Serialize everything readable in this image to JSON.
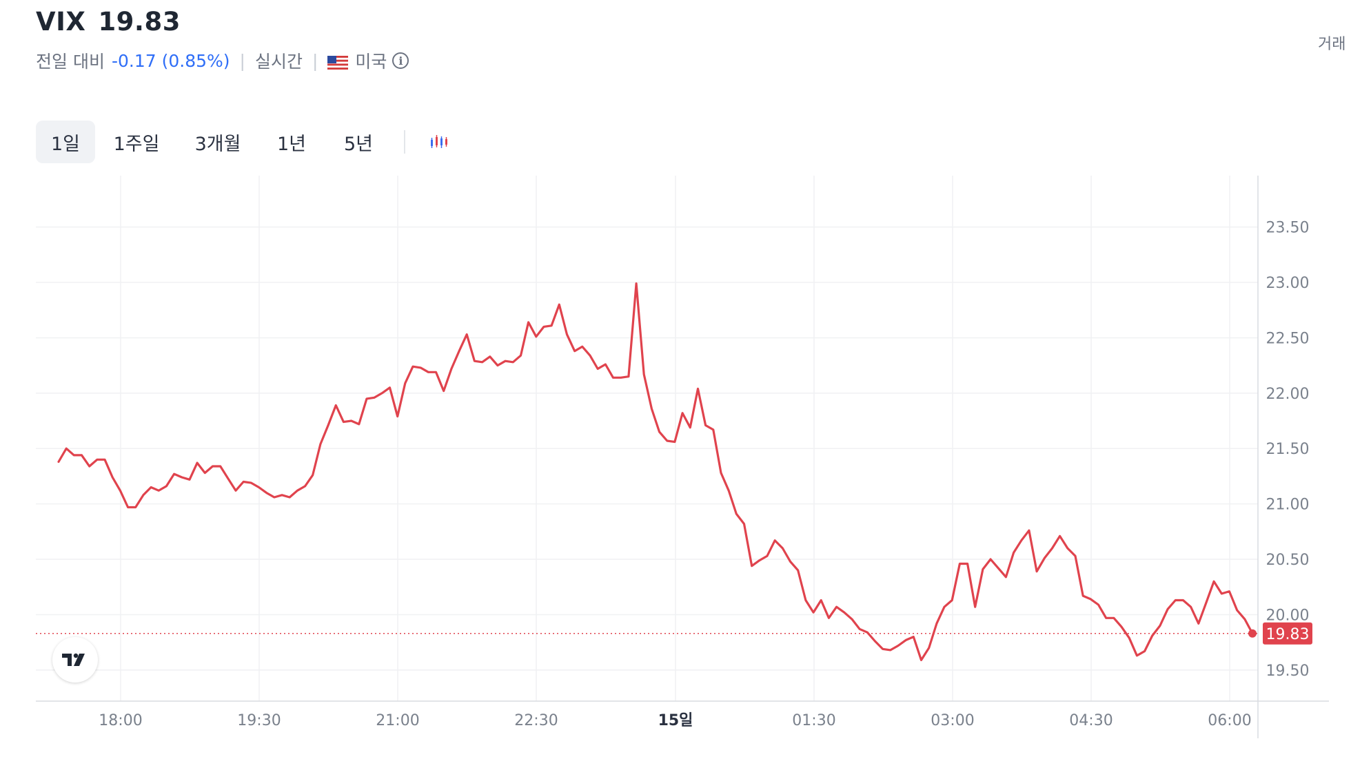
{
  "header": {
    "symbol": "VIX",
    "price": "19.83",
    "change_label": "전일 대비",
    "change": "-0.17 (0.85%)",
    "realtime": "실시간",
    "market": "미국",
    "right_text": "거래",
    "flag_icon": "us-flag-icon",
    "info_icon": "info-icon",
    "info_glyph": "i"
  },
  "tabs": [
    {
      "label": "1일",
      "active": true
    },
    {
      "label": "1주일",
      "active": false
    },
    {
      "label": "3개월",
      "active": false
    },
    {
      "label": "1년",
      "active": false
    },
    {
      "label": "5년",
      "active": false
    }
  ],
  "chart_type_icon": "candlestick-chart-icon",
  "colors": {
    "line": "#e0434d",
    "last_price_bg": "#e0434d",
    "change_text": "#2f6ef7"
  },
  "chart_data": {
    "type": "line",
    "x_axis_labels": [
      "18:00",
      "19:30",
      "21:00",
      "22:30",
      "15일",
      "01:30",
      "03:00",
      "04:30",
      "06:00"
    ],
    "y_tick_labels": [
      "23.50",
      "23.00",
      "22.50",
      "22.00",
      "21.50",
      "21.00",
      "20.50",
      "20.00",
      "19.50"
    ],
    "ylim": [
      19.2,
      23.95
    ],
    "last_value": 19.83,
    "last_value_label": "19.83",
    "grid": true,
    "series": [
      {
        "values": [
          21.38,
          21.5,
          21.44,
          21.44,
          21.34,
          21.4,
          21.4,
          21.24,
          21.12,
          20.97,
          20.97,
          21.08,
          21.15,
          21.12,
          21.16,
          21.27,
          21.24,
          21.22,
          21.37,
          21.28,
          21.34,
          21.34,
          21.23,
          21.12,
          21.2,
          21.19,
          21.15,
          21.1,
          21.06,
          21.08,
          21.06,
          21.12,
          21.16,
          21.26,
          21.54,
          21.71,
          21.89,
          21.74,
          21.75,
          21.72,
          21.95,
          21.96,
          22.0,
          22.05,
          21.79,
          22.09,
          22.24,
          22.23,
          22.19,
          22.19,
          22.02,
          22.22,
          22.38,
          22.53,
          22.29,
          22.28,
          22.33,
          22.25,
          22.29,
          22.28,
          22.34,
          22.64,
          22.51,
          22.6,
          22.61,
          22.8,
          22.53,
          22.38,
          22.42,
          22.34,
          22.22,
          22.26,
          22.14,
          22.14,
          22.15,
          22.99,
          22.17,
          21.86,
          21.65,
          21.57,
          21.56,
          21.82,
          21.69,
          22.04,
          21.71,
          21.67,
          21.28,
          21.12,
          20.91,
          20.82,
          20.44,
          20.49,
          20.53,
          20.67,
          20.6,
          20.48,
          20.4,
          20.13,
          20.02,
          20.13,
          19.97,
          20.07,
          20.02,
          19.96,
          19.87,
          19.84,
          19.76,
          19.69,
          19.68,
          19.72,
          19.77,
          19.8,
          19.59,
          19.7,
          19.92,
          20.07,
          20.13,
          20.46,
          20.46,
          20.07,
          20.41,
          20.5,
          20.42,
          20.34,
          20.56,
          20.67,
          20.76,
          20.39,
          20.51,
          20.6,
          20.71,
          20.6,
          20.53,
          20.17,
          20.14,
          20.09,
          19.97,
          19.97,
          19.89,
          19.79,
          19.63,
          19.67,
          19.81,
          19.9,
          20.05,
          20.13,
          20.13,
          20.07,
          19.92,
          20.11,
          20.3,
          20.19,
          20.21,
          20.04,
          19.96,
          19.83
        ]
      }
    ]
  }
}
